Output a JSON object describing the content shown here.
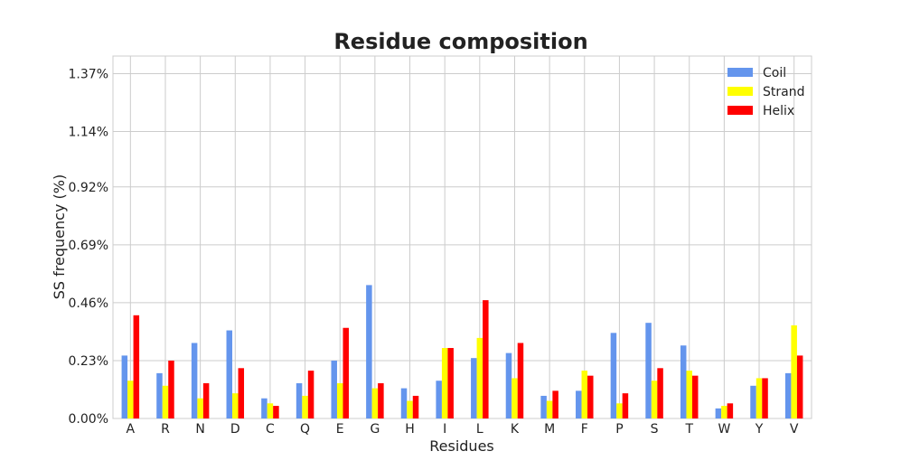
{
  "chart_data": {
    "type": "bar",
    "title": "Residue composition",
    "xlabel": "Residues",
    "ylabel": "SS frequency (%)",
    "ylim": [
      0,
      1.44
    ],
    "grid": true,
    "legend_position": "top-right",
    "categories": [
      "A",
      "R",
      "N",
      "D",
      "C",
      "Q",
      "E",
      "G",
      "H",
      "I",
      "L",
      "K",
      "M",
      "F",
      "P",
      "S",
      "T",
      "W",
      "Y",
      "V"
    ],
    "y_ticks": [
      0.0,
      0.23,
      0.46,
      0.69,
      0.92,
      1.14,
      1.37
    ],
    "y_tick_labels": [
      "0.00%",
      "0.23%",
      "0.46%",
      "0.69%",
      "0.92%",
      "1.14%",
      "1.37%"
    ],
    "series": [
      {
        "name": "Coil",
        "color": "#6495ED",
        "values": [
          0.25,
          0.18,
          0.3,
          0.35,
          0.08,
          0.14,
          0.23,
          0.53,
          0.12,
          0.15,
          0.24,
          0.26,
          0.09,
          0.11,
          0.34,
          0.38,
          0.29,
          0.04,
          0.13,
          0.18
        ]
      },
      {
        "name": "Strand",
        "color": "#FFFF00",
        "values": [
          0.15,
          0.13,
          0.08,
          0.1,
          0.06,
          0.09,
          0.14,
          0.12,
          0.07,
          0.28,
          0.32,
          0.16,
          0.07,
          0.19,
          0.06,
          0.15,
          0.19,
          0.05,
          0.16,
          0.37
        ]
      },
      {
        "name": "Helix",
        "color": "#FF0000",
        "values": [
          0.41,
          0.23,
          0.14,
          0.2,
          0.05,
          0.19,
          0.36,
          0.14,
          0.09,
          0.28,
          0.47,
          0.3,
          0.11,
          0.17,
          0.1,
          0.2,
          0.17,
          0.06,
          0.16,
          0.25
        ]
      }
    ]
  }
}
